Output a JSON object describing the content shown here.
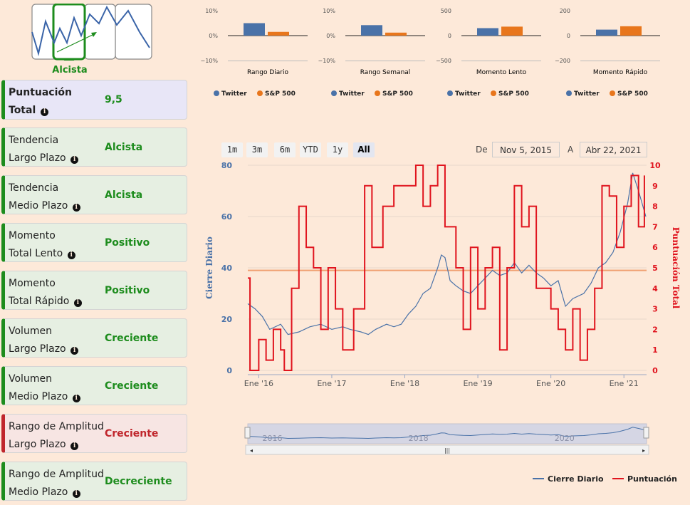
{
  "logo": {
    "label": "Alcista",
    "icon": "trend-chart-icon",
    "accent": "#1d8c1d"
  },
  "cards": [
    {
      "label_top": "Puntuación",
      "label_bottom": "Total",
      "value": "9,5",
      "status": "total"
    },
    {
      "label_top": "Tendencia",
      "label_bottom": "Largo Plazo",
      "value": "Alcista",
      "status": "green"
    },
    {
      "label_top": "Tendencia",
      "label_bottom": "Medio Plazo",
      "value": "Alcista",
      "status": "green"
    },
    {
      "label_top": "Momento",
      "label_bottom": "Total Lento",
      "value": "Positivo",
      "status": "green"
    },
    {
      "label_top": "Momento",
      "label_bottom": "Total Rápido",
      "value": "Positivo",
      "status": "green"
    },
    {
      "label_top": "Volumen",
      "label_bottom": "Largo Plazo",
      "value": "Creciente",
      "status": "green"
    },
    {
      "label_top": "Volumen",
      "label_bottom": "Medio Plazo",
      "value": "Creciente",
      "status": "green"
    },
    {
      "label_top": "Rango de Amplitud",
      "label_bottom": "Largo Plazo",
      "value": "Creciente",
      "status": "red"
    },
    {
      "label_top": "Rango de Amplitud",
      "label_bottom": "Medio Plazo",
      "value": "Decreciente",
      "status": "green"
    }
  ],
  "range_selector": {
    "buttons": [
      "1m",
      "3m",
      "6m",
      "YTD",
      "1y",
      "All"
    ],
    "active": "All",
    "from_label": "De",
    "from_value": "Nov 5, 2015",
    "to_label": "A",
    "to_value": "Abr 22, 2021"
  },
  "chart_data": [
    {
      "type": "bar",
      "title": "Rango Diario",
      "categories": [
        "Twitter",
        "S&P 500"
      ],
      "values": [
        5,
        1.5
      ],
      "ylim": [
        -10,
        10
      ],
      "ticks": [
        "10%",
        "0%",
        "−10%"
      ],
      "colors": [
        "#4a72a8",
        "#e8761c"
      ]
    },
    {
      "type": "bar",
      "title": "Rango Semanal",
      "categories": [
        "Twitter",
        "S&P 500"
      ],
      "values": [
        4.2,
        1.2
      ],
      "ylim": [
        -10,
        10
      ],
      "ticks": [
        "10%",
        "0%",
        "−10%"
      ],
      "colors": [
        "#4a72a8",
        "#e8761c"
      ]
    },
    {
      "type": "bar",
      "title": "Momento Lento",
      "categories": [
        "Twitter",
        "S&P 500"
      ],
      "values": [
        150,
        180
      ],
      "ylim": [
        -500,
        500
      ],
      "ticks": [
        "500",
        "0",
        "−500"
      ],
      "colors": [
        "#4a72a8",
        "#e8761c"
      ]
    },
    {
      "type": "bar",
      "title": "Momento Rápido",
      "categories": [
        "Twitter",
        "S&P 500"
      ],
      "values": [
        48,
        75
      ],
      "ylim": [
        -200,
        200
      ],
      "ticks": [
        "200",
        "0",
        "−200"
      ],
      "colors": [
        "#4a72a8",
        "#e8761c"
      ]
    },
    {
      "type": "line",
      "series": [
        {
          "name": "Cierre Diario",
          "axis": "left",
          "color": "#4a72a8",
          "points": [
            [
              2015.85,
              26
            ],
            [
              2015.95,
              24
            ],
            [
              2016.05,
              21
            ],
            [
              2016.15,
              16
            ],
            [
              2016.3,
              18
            ],
            [
              2016.4,
              14
            ],
            [
              2016.55,
              15
            ],
            [
              2016.7,
              17
            ],
            [
              2016.85,
              18
            ],
            [
              2017.0,
              16
            ],
            [
              2017.15,
              17
            ],
            [
              2017.25,
              16
            ],
            [
              2017.4,
              15
            ],
            [
              2017.5,
              14
            ],
            [
              2017.6,
              16
            ],
            [
              2017.75,
              18
            ],
            [
              2017.85,
              17
            ],
            [
              2017.95,
              18
            ],
            [
              2018.05,
              22
            ],
            [
              2018.15,
              25
            ],
            [
              2018.25,
              30
            ],
            [
              2018.35,
              32
            ],
            [
              2018.45,
              40
            ],
            [
              2018.5,
              45
            ],
            [
              2018.55,
              44
            ],
            [
              2018.62,
              35
            ],
            [
              2018.7,
              33
            ],
            [
              2018.8,
              31
            ],
            [
              2018.9,
              30
            ],
            [
              2019.0,
              33
            ],
            [
              2019.1,
              36
            ],
            [
              2019.2,
              39
            ],
            [
              2019.3,
              37
            ],
            [
              2019.4,
              38
            ],
            [
              2019.5,
              42
            ],
            [
              2019.6,
              38
            ],
            [
              2019.7,
              41
            ],
            [
              2019.8,
              38
            ],
            [
              2019.9,
              36
            ],
            [
              2020.0,
              33
            ],
            [
              2020.1,
              35
            ],
            [
              2020.2,
              25
            ],
            [
              2020.3,
              28
            ],
            [
              2020.45,
              30
            ],
            [
              2020.55,
              34
            ],
            [
              2020.65,
              40
            ],
            [
              2020.75,
              42
            ],
            [
              2020.85,
              46
            ],
            [
              2020.95,
              54
            ],
            [
              2021.05,
              65
            ],
            [
              2021.12,
              77
            ],
            [
              2021.2,
              70
            ],
            [
              2021.3,
              60
            ]
          ]
        },
        {
          "name": "Puntuación",
          "axis": "right",
          "color": "#e0141e",
          "points": [
            [
              2015.85,
              4.5
            ],
            [
              2015.88,
              0
            ],
            [
              2016.0,
              1.5
            ],
            [
              2016.1,
              0.5
            ],
            [
              2016.2,
              2
            ],
            [
              2016.3,
              1
            ],
            [
              2016.35,
              0
            ],
            [
              2016.45,
              4
            ],
            [
              2016.55,
              8
            ],
            [
              2016.65,
              6
            ],
            [
              2016.75,
              5
            ],
            [
              2016.85,
              2
            ],
            [
              2016.95,
              5
            ],
            [
              2017.05,
              3
            ],
            [
              2017.15,
              1
            ],
            [
              2017.3,
              3
            ],
            [
              2017.45,
              9
            ],
            [
              2017.55,
              6
            ],
            [
              2017.7,
              8
            ],
            [
              2017.85,
              9
            ],
            [
              2018.05,
              9
            ],
            [
              2018.15,
              10
            ],
            [
              2018.25,
              8
            ],
            [
              2018.35,
              9
            ],
            [
              2018.45,
              10
            ],
            [
              2018.55,
              7
            ],
            [
              2018.7,
              5
            ],
            [
              2018.8,
              2
            ],
            [
              2018.9,
              6
            ],
            [
              2019.0,
              3
            ],
            [
              2019.1,
              5
            ],
            [
              2019.2,
              6
            ],
            [
              2019.3,
              1
            ],
            [
              2019.4,
              5
            ],
            [
              2019.5,
              9
            ],
            [
              2019.6,
              7
            ],
            [
              2019.7,
              8
            ],
            [
              2019.8,
              4
            ],
            [
              2019.9,
              4
            ],
            [
              2020.0,
              3
            ],
            [
              2020.1,
              2
            ],
            [
              2020.2,
              1
            ],
            [
              2020.3,
              3
            ],
            [
              2020.4,
              0.5
            ],
            [
              2020.5,
              2
            ],
            [
              2020.6,
              4
            ],
            [
              2020.7,
              9
            ],
            [
              2020.8,
              8.5
            ],
            [
              2020.9,
              6
            ],
            [
              2021.0,
              8
            ],
            [
              2021.1,
              9.5
            ],
            [
              2021.2,
              7
            ],
            [
              2021.28,
              9.5
            ]
          ]
        }
      ],
      "horizontal_line": {
        "axis": "left",
        "value": 39,
        "color": "#f0a070"
      },
      "left_axis": {
        "label": "Cierre Diario",
        "ticks": [
          0,
          20,
          40,
          60,
          80
        ],
        "ylim": [
          0,
          80
        ],
        "color": "#4a72a8"
      },
      "right_axis": {
        "label": "Puntuación Total",
        "ticks": [
          0,
          1,
          2,
          3,
          4,
          5,
          6,
          7,
          8,
          9,
          10
        ],
        "ylim": [
          0,
          10
        ],
        "color": "#e0141e"
      },
      "x_ticks": [
        {
          "value": 2016.0,
          "label": "Ene '16"
        },
        {
          "value": 2017.0,
          "label": "Ene '17"
        },
        {
          "value": 2018.0,
          "label": "Ene '18"
        },
        {
          "value": 2019.0,
          "label": "Ene '19"
        },
        {
          "value": 2020.0,
          "label": "Ene '20"
        },
        {
          "value": 2021.0,
          "label": "Ene '21"
        }
      ],
      "xlim": [
        2015.85,
        2021.31
      ],
      "navigator_ticks": [
        "2016",
        "2018",
        "2020"
      ],
      "legend": [
        "Cierre Diario",
        "Puntuación"
      ]
    }
  ]
}
